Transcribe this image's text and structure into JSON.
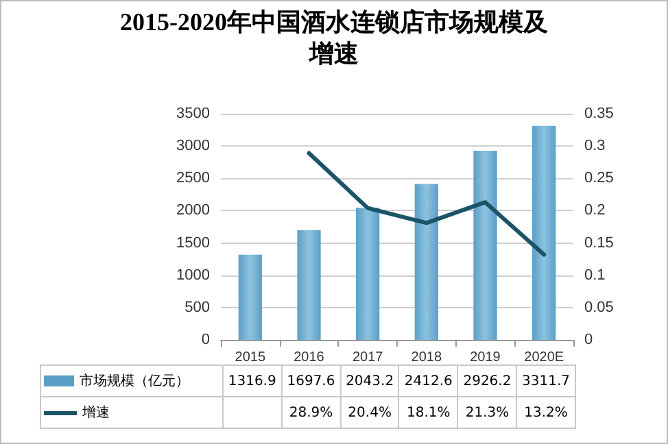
{
  "chart_data": {
    "type": "bar",
    "title": "2015-2020年中国酒水连锁店市场规模及增速",
    "categories": [
      "2015",
      "2016",
      "2017",
      "2018",
      "2019",
      "2020E"
    ],
    "series": [
      {
        "name": "市场规模（亿元）",
        "color": "#5b9fc8",
        "values": [
          1316.9,
          1697.6,
          2043.2,
          2412.6,
          2926.2,
          3311.7
        ],
        "value_labels": [
          "1316.9",
          "1697.6",
          "2043.2",
          "2412.6",
          "2926.2",
          "3311.7"
        ]
      },
      {
        "name": "增速",
        "type": "line",
        "axis": "y2",
        "color": "#1b5466",
        "values": [
          null,
          0.289,
          0.204,
          0.181,
          0.213,
          0.132
        ],
        "value_labels": [
          null,
          "28.9%",
          "20.4%",
          "18.1%",
          "21.3%",
          "13.2%"
        ]
      }
    ],
    "ylim": [
      0,
      3500
    ],
    "yticks": [
      0,
      500,
      1000,
      1500,
      2000,
      2500,
      3000,
      3500
    ],
    "y2lim": [
      0,
      0.35
    ],
    "y2ticks": [
      0,
      0.05,
      0.1,
      0.15,
      0.2,
      0.25,
      0.3,
      0.35
    ],
    "grid": "y",
    "legend": "bottom",
    "marker": "none"
  }
}
